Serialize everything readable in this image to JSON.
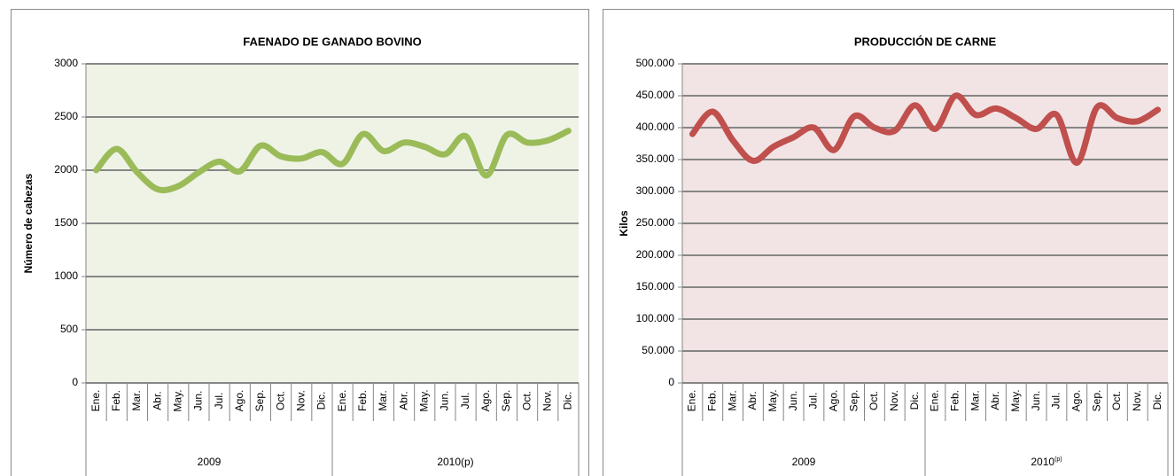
{
  "chart_data": [
    {
      "type": "line",
      "title": "FAENADO DE GANADO BOVINO",
      "ylabel": "Número de cabezas",
      "color": "#9bbb59",
      "background": "#eef3e6",
      "categories": [
        "Ene.",
        "Feb.",
        "Mar.",
        "Abr.",
        "May.",
        "Jun.",
        "Jul.",
        "Ago.",
        "Sep.",
        "Oct.",
        "Nov.",
        "Dic.",
        "Ene.",
        "Feb.",
        "Mar.",
        "Abr.",
        "May.",
        "Jun.",
        "Jul.",
        "Ago.",
        "Sep.",
        "Oct.",
        "Nov.",
        "Dic."
      ],
      "groups": [
        "2009",
        "2010(p)"
      ],
      "values": [
        2000,
        2200,
        1980,
        1820,
        1850,
        1980,
        2080,
        1990,
        2230,
        2130,
        2110,
        2170,
        2060,
        2340,
        2180,
        2260,
        2220,
        2150,
        2320,
        1950,
        2330,
        2260,
        2280,
        2370
      ],
      "ylim": [
        0,
        3000
      ],
      "yticks": [
        0,
        500,
        1000,
        1500,
        2000,
        2500,
        3000
      ],
      "grid": true
    },
    {
      "type": "line",
      "title": "PRODUCCIÓN DE CARNE",
      "ylabel": "Kilos",
      "color": "#c0504d",
      "background": "#f2e4e4",
      "categories": [
        "Ene.",
        "Feb.",
        "Mar.",
        "Abr.",
        "May.",
        "Jun.",
        "Jul.",
        "Ago.",
        "Sep.",
        "Oct.",
        "Nov.",
        "Dic.",
        "Ene.",
        "Feb.",
        "Mar.",
        "Abr.",
        "May.",
        "Jun.",
        "Jul.",
        "Ago.",
        "Sep.",
        "Oct.",
        "Nov.",
        "Dic."
      ],
      "groups": [
        "2009",
        {
          "text": "2010",
          "sup": "(p)"
        }
      ],
      "values": [
        390000,
        425000,
        380000,
        348000,
        370000,
        385000,
        400000,
        365000,
        418000,
        400000,
        395000,
        435000,
        398000,
        450000,
        420000,
        430000,
        415000,
        398000,
        420000,
        345000,
        432000,
        415000,
        410000,
        428000
      ],
      "ylim": [
        0,
        500000
      ],
      "yticks": [
        0,
        {
          "value": 50000,
          "label": "50.000"
        },
        {
          "value": 100000,
          "label": "100.000"
        },
        {
          "value": 150000,
          "label": "150.000"
        },
        {
          "value": 200000,
          "label": "200.000"
        },
        {
          "value": 250000,
          "label": "250.000"
        },
        {
          "value": 300000,
          "label": "300.000"
        },
        {
          "value": 350000,
          "label": "350.000"
        },
        {
          "value": 400000,
          "label": "400.000"
        },
        {
          "value": 450000,
          "label": "450.000"
        },
        {
          "value": 500000,
          "label": "500.000"
        }
      ],
      "grid": true
    }
  ]
}
